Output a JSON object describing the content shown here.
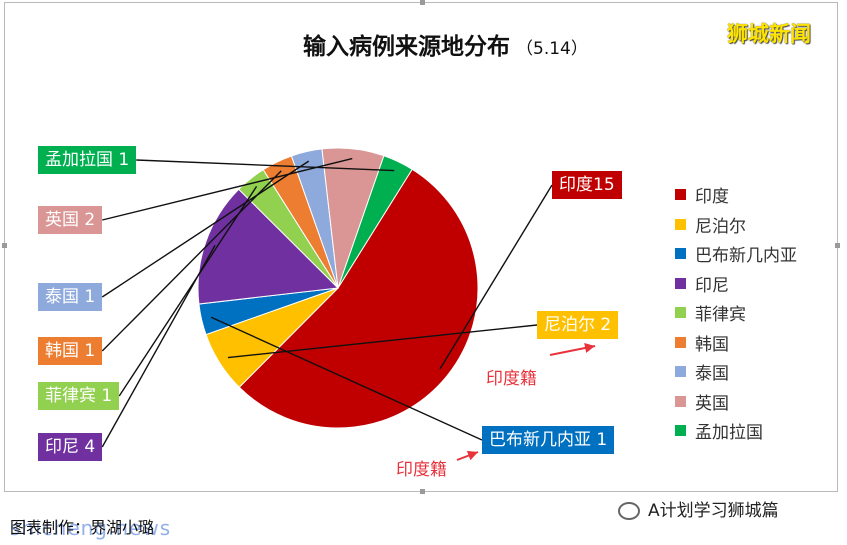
{
  "header": {
    "title": "输入病例来源地分布",
    "subtitle": "（5.14）",
    "brand": "狮城新闻"
  },
  "colors": {
    "India": "#c00000",
    "Nepal": "#ffc000",
    "PNG": "#0070c0",
    "Indonesia": "#7030a0",
    "Philippines": "#92d050",
    "Korea": "#ed7d31",
    "Thailand": "#8ea9db",
    "UK": "#d99694",
    "Bangladesh": "#00b050",
    "annotation": "#e8323c"
  },
  "chart_data": {
    "type": "pie",
    "title": "输入病例来源地分布",
    "categories": [
      "印度",
      "尼泊尔",
      "巴布新几内亚",
      "印尼",
      "菲律宾",
      "韩国",
      "泰国",
      "英国",
      "孟加拉国"
    ],
    "values": [
      15,
      2,
      1,
      4,
      1,
      1,
      1,
      2,
      1
    ],
    "data_labels": [
      "印度15",
      "尼泊尔 2",
      "巴布新几内亚 1",
      "印尼 4",
      "菲律宾 1",
      "韩国 1",
      "泰国 1",
      "英国 2",
      "孟加拉国 1"
    ],
    "legend_position": "right"
  },
  "annotations": {
    "nepal_note": "印度籍",
    "png_note": "印度籍"
  },
  "footer": {
    "credit": "图表制作：界湖小璐",
    "credit_watermark": "shicheng.news",
    "wechat": "A计划学习狮城篇"
  }
}
